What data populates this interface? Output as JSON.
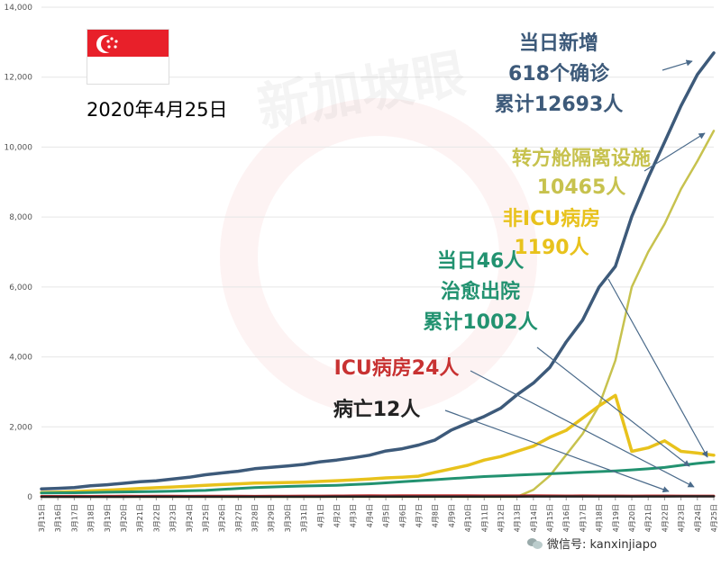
{
  "header": {
    "date": "2020年4月25日",
    "watermark": "新加坡眼"
  },
  "footer": {
    "source": "微信号: kanxinjiapo"
  },
  "annotations": {
    "confirmed": [
      "当日新增",
      "618个确诊",
      "累计12693人"
    ],
    "community": [
      "转方舱隔离设施",
      "10465人"
    ],
    "ward": [
      "非ICU病房",
      "1190人"
    ],
    "discharged": [
      "当日46人",
      "治愈出院",
      "累计1002人"
    ],
    "icu": [
      "ICU病房24人"
    ],
    "deaths": [
      "病亡12人"
    ]
  },
  "colors": {
    "confirmed": "#3d5a7a",
    "community": "#c7c24e",
    "ward": "#e8c21c",
    "discharged": "#229270",
    "icu": "#c83232",
    "deaths": "#222222",
    "grid": "#e6e6e6"
  },
  "chart_data": {
    "type": "line",
    "title": "",
    "xlabel": "",
    "ylabel": "",
    "ylim": [
      0,
      14000
    ],
    "yticks": [
      0,
      2000,
      4000,
      6000,
      8000,
      10000,
      12000,
      14000
    ],
    "grid": true,
    "categories": [
      "3月15日",
      "3月16日",
      "3月17日",
      "3月18日",
      "3月19日",
      "3月20日",
      "3月21日",
      "3月22日",
      "3月23日",
      "3月24日",
      "3月25日",
      "3月26日",
      "3月27日",
      "3月28日",
      "3月29日",
      "3月30日",
      "3月31日",
      "4月1日",
      "4月2日",
      "4月3日",
      "4月4日",
      "4月5日",
      "4月6日",
      "4月7日",
      "4月8日",
      "4月9日",
      "4月10日",
      "4月11日",
      "4月12日",
      "4月13日",
      "4月14日",
      "4月15日",
      "4月16日",
      "4月17日",
      "4月18日",
      "4月19日",
      "4月20日",
      "4月21日",
      "4月22日",
      "4月23日",
      "4月24日",
      "4月25日"
    ],
    "series": [
      {
        "key": "confirmed",
        "values": [
          226,
          243,
          266,
          313,
          345,
          385,
          432,
          455,
          509,
          558,
          631,
          683,
          732,
          802,
          844,
          879,
          926,
          1000,
          1049,
          1114,
          1189,
          1309,
          1375,
          1481,
          1623,
          1910,
          2108,
          2299,
          2532,
          2918,
          3252,
          3699,
          4427,
          5050,
          5992,
          6588,
          8014,
          9125,
          10141,
          11178,
          12075,
          12693
        ]
      },
      {
        "key": "community",
        "values": [
          0,
          0,
          0,
          0,
          0,
          0,
          0,
          0,
          0,
          0,
          0,
          0,
          0,
          0,
          0,
          0,
          0,
          0,
          0,
          0,
          0,
          0,
          0,
          0,
          0,
          0,
          0,
          0,
          0,
          0,
          200,
          600,
          1200,
          1800,
          2600,
          3900,
          6000,
          7000,
          7800,
          8800,
          9600,
          10465
        ]
      },
      {
        "key": "ward",
        "values": [
          120,
          130,
          150,
          170,
          190,
          210,
          240,
          260,
          280,
          300,
          330,
          350,
          370,
          390,
          400,
          410,
          420,
          440,
          460,
          480,
          510,
          540,
          560,
          590,
          700,
          800,
          900,
          1050,
          1150,
          1300,
          1450,
          1700,
          1900,
          2250,
          2600,
          2900,
          1300,
          1400,
          1600,
          1300,
          1250,
          1190
        ]
      },
      {
        "key": "discharged",
        "values": [
          109,
          114,
          117,
          124,
          131,
          140,
          144,
          152,
          160,
          172,
          183,
          212,
          240,
          266,
          280,
          295,
          310,
          320,
          330,
          350,
          370,
          400,
          430,
          460,
          490,
          520,
          550,
          580,
          600,
          620,
          640,
          660,
          680,
          700,
          720,
          740,
          770,
          800,
          840,
          900,
          956,
          1002
        ]
      },
      {
        "key": "icu",
        "values": [
          14,
          14,
          15,
          14,
          16,
          17,
          16,
          17,
          17,
          16,
          17,
          17,
          17,
          16,
          18,
          19,
          23,
          24,
          26,
          29,
          30,
          29,
          30,
          32,
          30,
          31,
          31,
          29,
          28,
          28,
          31,
          29,
          27,
          28,
          26,
          26,
          24,
          25,
          25,
          24,
          24,
          24
        ]
      },
      {
        "key": "deaths",
        "values": [
          0,
          0,
          0,
          0,
          0,
          0,
          2,
          2,
          2,
          2,
          2,
          2,
          2,
          3,
          3,
          3,
          3,
          3,
          4,
          5,
          5,
          6,
          6,
          6,
          6,
          6,
          7,
          8,
          8,
          9,
          10,
          10,
          10,
          10,
          11,
          11,
          11,
          11,
          11,
          12,
          12,
          12
        ]
      }
    ]
  }
}
